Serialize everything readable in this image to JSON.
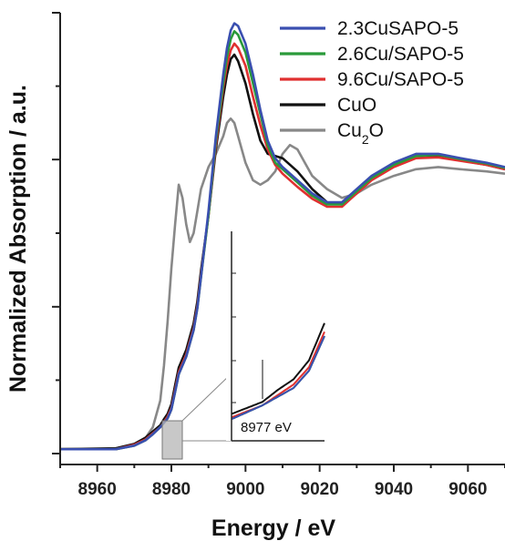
{
  "chart_data": {
    "type": "line",
    "title": "",
    "xlabel": "Energy / eV",
    "ylabel": "Normalized Absorption / a.u.",
    "xlim": [
      8950,
      9070
    ],
    "ylim": [
      0,
      1.0
    ],
    "xticks": [
      8960,
      8980,
      9000,
      9020,
      9040,
      9060
    ],
    "grid": false,
    "legend_position": "top-right",
    "series": [
      {
        "name": "2.3CuSAPO-5",
        "color": "#3a4fb0",
        "x": [
          8950,
          8965,
          8970,
          8973,
          8975,
          8977,
          8978,
          8979,
          8980,
          8981,
          8982,
          8984,
          8985,
          8986,
          8987,
          8988,
          8990,
          8992,
          8994,
          8995,
          8996,
          8997,
          8998,
          9000,
          9002,
          9004,
          9006,
          9008,
          9010,
          9014,
          9018,
          9022,
          9026,
          9030,
          9034,
          9040,
          9046,
          9052,
          9058,
          9065,
          9070
        ],
        "y": [
          0.01,
          0.01,
          0.018,
          0.03,
          0.044,
          0.06,
          0.07,
          0.08,
          0.1,
          0.14,
          0.18,
          0.22,
          0.25,
          0.28,
          0.33,
          0.4,
          0.55,
          0.72,
          0.86,
          0.92,
          0.96,
          0.976,
          0.97,
          0.93,
          0.86,
          0.78,
          0.71,
          0.67,
          0.65,
          0.62,
          0.59,
          0.57,
          0.57,
          0.6,
          0.63,
          0.66,
          0.68,
          0.68,
          0.67,
          0.66,
          0.65
        ]
      },
      {
        "name": "2.6Cu/SAPO-5",
        "color": "#2a9a3a",
        "x": [
          8950,
          8965,
          8970,
          8973,
          8975,
          8977,
          8978,
          8979,
          8980,
          8981,
          8982,
          8984,
          8985,
          8986,
          8987,
          8988,
          8990,
          8992,
          8994,
          8995,
          8996,
          8997,
          8998,
          9000,
          9002,
          9004,
          9006,
          9008,
          9010,
          9014,
          9018,
          9022,
          9026,
          9030,
          9034,
          9040,
          9046,
          9052,
          9058,
          9065,
          9070
        ],
        "y": [
          0.01,
          0.01,
          0.018,
          0.03,
          0.044,
          0.06,
          0.07,
          0.08,
          0.1,
          0.14,
          0.18,
          0.22,
          0.25,
          0.28,
          0.33,
          0.4,
          0.54,
          0.71,
          0.84,
          0.9,
          0.94,
          0.958,
          0.95,
          0.91,
          0.84,
          0.77,
          0.7,
          0.66,
          0.645,
          0.615,
          0.585,
          0.565,
          0.565,
          0.595,
          0.625,
          0.655,
          0.675,
          0.678,
          0.668,
          0.658,
          0.648
        ]
      },
      {
        "name": "9.6Cu/SAPO-5",
        "color": "#e03030",
        "x": [
          8950,
          8965,
          8970,
          8973,
          8975,
          8977,
          8978,
          8979,
          8980,
          8981,
          8982,
          8984,
          8985,
          8986,
          8987,
          8988,
          8990,
          8992,
          8994,
          8995,
          8996,
          8997,
          8998,
          9000,
          9002,
          9004,
          9006,
          9008,
          9010,
          9014,
          9018,
          9022,
          9026,
          9030,
          9034,
          9040,
          9046,
          9052,
          9058,
          9065,
          9070
        ],
        "y": [
          0.01,
          0.01,
          0.02,
          0.032,
          0.046,
          0.06,
          0.072,
          0.084,
          0.104,
          0.145,
          0.185,
          0.225,
          0.255,
          0.285,
          0.335,
          0.405,
          0.54,
          0.7,
          0.83,
          0.88,
          0.915,
          0.93,
          0.92,
          0.88,
          0.81,
          0.745,
          0.69,
          0.655,
          0.635,
          0.605,
          0.578,
          0.56,
          0.56,
          0.59,
          0.62,
          0.65,
          0.67,
          0.672,
          0.664,
          0.655,
          0.645
        ]
      },
      {
        "name": "CuO",
        "color": "#111111",
        "x": [
          8950,
          8965,
          8970,
          8973,
          8975,
          8977,
          8978,
          8979,
          8980,
          8981,
          8982,
          8984,
          8985,
          8986,
          8987,
          8988,
          8990,
          8992,
          8994,
          8995,
          8996,
          8997,
          8998,
          9000,
          9002,
          9004,
          9006,
          9008,
          9010,
          9014,
          9018,
          9022,
          9026,
          9030,
          9034,
          9040,
          9046,
          9052,
          9058,
          9065,
          9070
        ],
        "y": [
          0.01,
          0.012,
          0.022,
          0.036,
          0.05,
          0.064,
          0.078,
          0.09,
          0.112,
          0.155,
          0.195,
          0.235,
          0.265,
          0.295,
          0.345,
          0.415,
          0.54,
          0.69,
          0.81,
          0.86,
          0.895,
          0.905,
          0.89,
          0.84,
          0.77,
          0.71,
          0.68,
          0.675,
          0.67,
          0.64,
          0.6,
          0.57,
          0.565,
          0.59,
          0.625,
          0.655,
          0.675,
          0.675,
          0.665,
          0.655,
          0.645
        ]
      },
      {
        "name": "Cu2O",
        "color": "#888888",
        "x": [
          8950,
          8965,
          8970,
          8973,
          8975,
          8977,
          8978,
          8979,
          8980,
          8981,
          8982,
          8983,
          8984,
          8985,
          8986,
          8987,
          8988,
          8990,
          8992,
          8994,
          8995,
          8996,
          8997,
          8998,
          9000,
          9002,
          9004,
          9006,
          9008,
          9010,
          9012,
          9014,
          9016,
          9018,
          9022,
          9026,
          9030,
          9034,
          9040,
          9046,
          9052,
          9058,
          9065,
          9070
        ],
        "y": [
          0.01,
          0.01,
          0.02,
          0.035,
          0.06,
          0.12,
          0.2,
          0.3,
          0.42,
          0.52,
          0.61,
          0.58,
          0.52,
          0.48,
          0.5,
          0.55,
          0.6,
          0.65,
          0.68,
          0.72,
          0.75,
          0.76,
          0.75,
          0.72,
          0.66,
          0.62,
          0.61,
          0.62,
          0.64,
          0.68,
          0.7,
          0.69,
          0.66,
          0.63,
          0.6,
          0.58,
          0.59,
          0.61,
          0.63,
          0.645,
          0.65,
          0.645,
          0.64,
          0.635
        ]
      }
    ],
    "inset": {
      "annotation": "8977 eV",
      "marker_x": 8977,
      "x_range": [
        8975,
        8981
      ]
    }
  }
}
